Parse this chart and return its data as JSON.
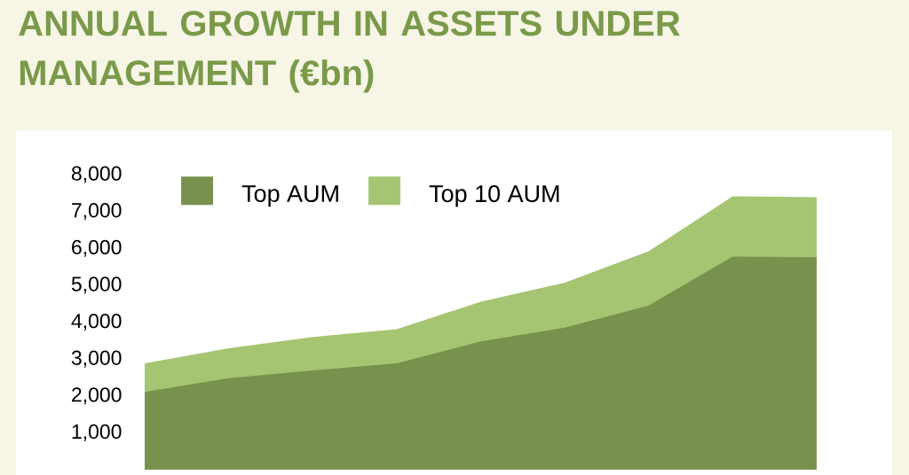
{
  "chart_data": {
    "type": "area",
    "title": "ANNUAL GROWTH IN ASSETS UNDER MANAGEMENT (€bn)",
    "categories": [
      null,
      null,
      null,
      null,
      null,
      null,
      null,
      null,
      null
    ],
    "series": [
      {
        "name": "Top AUM",
        "color": "#78924e",
        "values": [
          2110,
          2480,
          2690,
          2880,
          3480,
          3850,
          4450,
          5780,
          5760
        ]
      },
      {
        "name": "Top 10 AUM",
        "color": "#a5c572",
        "values": [
          2880,
          3290,
          3600,
          3810,
          4550,
          5070,
          5920,
          7410,
          7390
        ]
      }
    ],
    "ylim": [
      0,
      8000
    ],
    "yticks": [
      {
        "value": 1000,
        "label": "1,000"
      },
      {
        "value": 2000,
        "label": "2,000"
      },
      {
        "value": 3000,
        "label": "3,000"
      },
      {
        "value": 4000,
        "label": "4,000"
      },
      {
        "value": 5000,
        "label": "5,000"
      },
      {
        "value": 6000,
        "label": "6,000"
      },
      {
        "value": 7000,
        "label": "7,000"
      },
      {
        "value": 8000,
        "label": "8,000"
      }
    ],
    "legend": "top left",
    "grid": false
  }
}
